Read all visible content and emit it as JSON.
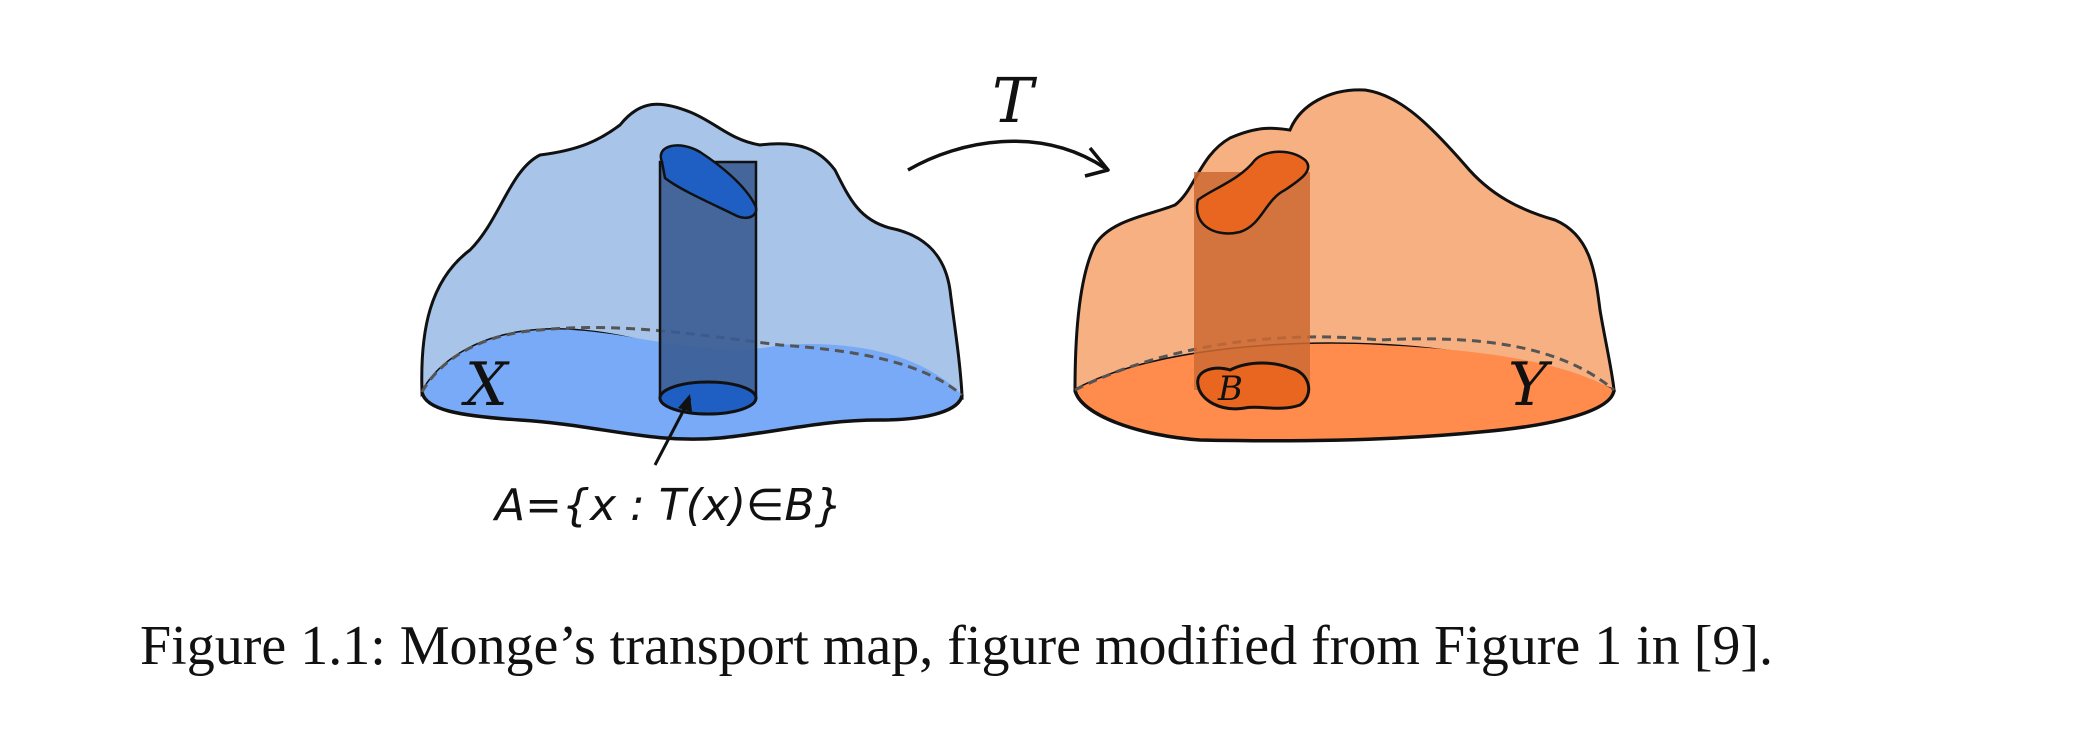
{
  "figure": {
    "map_label": "T",
    "domain_label": "X",
    "codomain_label": "Y",
    "target_set_label": "B",
    "preimage_label": "A={x : T(x)∈B}"
  },
  "caption": "Figure 1.1: Monge’s transport map, figure modified from Figure 1 in [9].",
  "colors": {
    "blue_surface": "#a8c4e8",
    "blue_base": "#78aaf8",
    "blue_column": "#3a5c92",
    "blue_set": "#1f5fc4",
    "orange_surface": "#f6b081",
    "orange_base": "#ff8c4c",
    "orange_column": "#cd6a34",
    "orange_set": "#e8661f"
  }
}
